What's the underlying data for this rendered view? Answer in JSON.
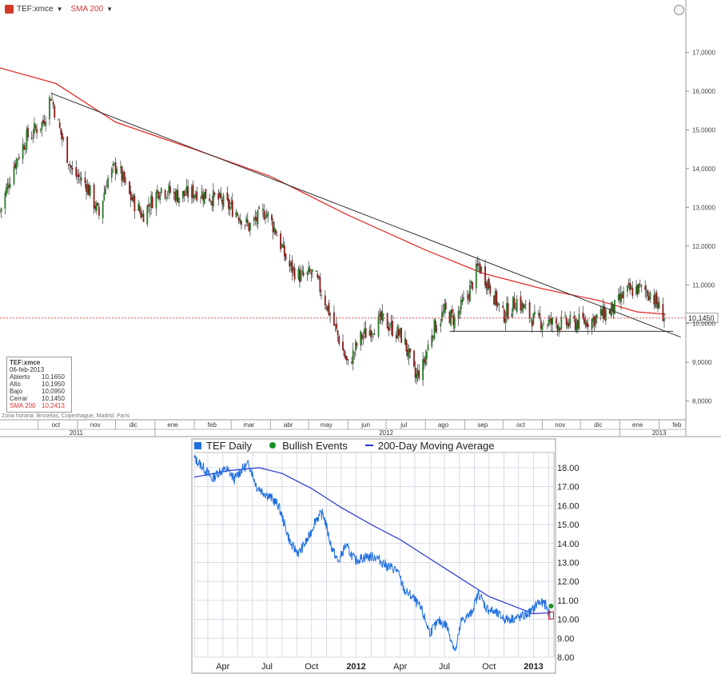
{
  "toolbar": {
    "symbol": "TEF:xmce",
    "indicator": "SMA 200"
  },
  "legend_box": {
    "title": "TEF:xmce",
    "date": "06-feb-2013",
    "rows": [
      {
        "k": "Abierto",
        "v": "10,1650"
      },
      {
        "k": "Alto",
        "v": "10,1950"
      },
      {
        "k": "Bajo",
        "v": "10,0950"
      },
      {
        "k": "Cerrar",
        "v": "10,1450"
      },
      {
        "k": "SMA 200",
        "v": "10,2413"
      }
    ]
  },
  "timezone_note": "Zona horaria: Bruselas, Copenhague, Madrid, París",
  "colors": {
    "candle_up": "#2a7a2a",
    "candle_down": "#8a1a1a",
    "sma": "#e03030",
    "trendline": "#333333",
    "daily": "#1f6fe0",
    "ma_bottom": "#2233cc",
    "bullish": "#1a8f2a"
  },
  "chart_data": [
    {
      "type": "candlestick",
      "title": "",
      "ylim": [
        7.6,
        17.9
      ],
      "y_ticks": [
        {
          "v": 8,
          "label": "8,0000"
        },
        {
          "v": 9,
          "label": "9,0000"
        },
        {
          "v": 10,
          "label": "10,0000"
        },
        {
          "v": 11,
          "label": "11,0000"
        },
        {
          "v": 12,
          "label": "12,0000"
        },
        {
          "v": 13,
          "label": "13,0000"
        },
        {
          "v": 14,
          "label": "14,0000"
        },
        {
          "v": 15,
          "label": "15,0000"
        },
        {
          "v": 16,
          "label": "16,0000"
        },
        {
          "v": 17,
          "label": "17,0000"
        }
      ],
      "x_range": [
        "2011-09-01",
        "2013-02-22"
      ],
      "month_labels": [
        {
          "d": "2011-10-15",
          "label": "oct"
        },
        {
          "d": "2011-11-15",
          "label": "nov"
        },
        {
          "d": "2011-12-15",
          "label": "dic"
        },
        {
          "d": "2012-01-15",
          "label": "ene"
        },
        {
          "d": "2012-02-15",
          "label": "feb"
        },
        {
          "d": "2012-03-15",
          "label": "mar"
        },
        {
          "d": "2012-04-15",
          "label": "abr"
        },
        {
          "d": "2012-05-15",
          "label": "may"
        },
        {
          "d": "2012-06-15",
          "label": "jun"
        },
        {
          "d": "2012-07-15",
          "label": "jul"
        },
        {
          "d": "2012-08-15",
          "label": "ago"
        },
        {
          "d": "2012-09-15",
          "label": "sep"
        },
        {
          "d": "2012-10-15",
          "label": "oct"
        },
        {
          "d": "2012-11-15",
          "label": "nov"
        },
        {
          "d": "2012-12-15",
          "label": "dic"
        },
        {
          "d": "2013-01-15",
          "label": "ene"
        },
        {
          "d": "2013-02-15",
          "label": "feb"
        }
      ],
      "year_labels": [
        {
          "d": "2011-10-31",
          "label": "2011"
        },
        {
          "d": "2012-07-01",
          "label": "2012"
        },
        {
          "d": "2013-02-01",
          "label": "2013"
        }
      ],
      "price_path": [
        {
          "d": "2011-09-01",
          "c": 12.9
        },
        {
          "d": "2011-09-12",
          "c": 14.1
        },
        {
          "d": "2011-09-22",
          "c": 14.8
        },
        {
          "d": "2011-10-05",
          "c": 15.2
        },
        {
          "d": "2011-10-11",
          "c": 15.9
        },
        {
          "d": "2011-10-18",
          "c": 15.0
        },
        {
          "d": "2011-10-28",
          "c": 13.9
        },
        {
          "d": "2011-11-08",
          "c": 13.6
        },
        {
          "d": "2011-11-18",
          "c": 12.8
        },
        {
          "d": "2011-11-24",
          "c": 13.7
        },
        {
          "d": "2011-12-02",
          "c": 14.1
        },
        {
          "d": "2011-12-12",
          "c": 13.3
        },
        {
          "d": "2011-12-22",
          "c": 12.8
        },
        {
          "d": "2012-01-05",
          "c": 13.5
        },
        {
          "d": "2012-01-20",
          "c": 13.3
        },
        {
          "d": "2012-02-03",
          "c": 13.4
        },
        {
          "d": "2012-02-20",
          "c": 13.2
        },
        {
          "d": "2012-03-05",
          "c": 12.9
        },
        {
          "d": "2012-03-15",
          "c": 12.5
        },
        {
          "d": "2012-03-28",
          "c": 12.9
        },
        {
          "d": "2012-04-05",
          "c": 12.4
        },
        {
          "d": "2012-04-15",
          "c": 11.5
        },
        {
          "d": "2012-04-25",
          "c": 11.2
        },
        {
          "d": "2012-05-05",
          "c": 11.3
        },
        {
          "d": "2012-05-15",
          "c": 10.5
        },
        {
          "d": "2012-05-25",
          "c": 9.6
        },
        {
          "d": "2012-06-01",
          "c": 8.9
        },
        {
          "d": "2012-06-10",
          "c": 9.6
        },
        {
          "d": "2012-06-20",
          "c": 9.9
        },
        {
          "d": "2012-06-28",
          "c": 10.1
        },
        {
          "d": "2012-07-05",
          "c": 9.9
        },
        {
          "d": "2012-07-15",
          "c": 9.6
        },
        {
          "d": "2012-07-24",
          "c": 8.6
        },
        {
          "d": "2012-07-30",
          "c": 8.9
        },
        {
          "d": "2012-08-06",
          "c": 9.8
        },
        {
          "d": "2012-08-16",
          "c": 10.3
        },
        {
          "d": "2012-08-24",
          "c": 10.1
        },
        {
          "d": "2012-09-04",
          "c": 10.8
        },
        {
          "d": "2012-09-12",
          "c": 11.5
        },
        {
          "d": "2012-09-20",
          "c": 11.0
        },
        {
          "d": "2012-10-01",
          "c": 10.2
        },
        {
          "d": "2012-10-12",
          "c": 10.6
        },
        {
          "d": "2012-10-25",
          "c": 10.1
        },
        {
          "d": "2012-11-10",
          "c": 10.0
        },
        {
          "d": "2012-11-25",
          "c": 10.0
        },
        {
          "d": "2012-12-10",
          "c": 10.1
        },
        {
          "d": "2012-12-28",
          "c": 10.4
        },
        {
          "d": "2013-01-05",
          "c": 10.8
        },
        {
          "d": "2013-01-15",
          "c": 10.9
        },
        {
          "d": "2013-01-25",
          "c": 10.8
        },
        {
          "d": "2013-02-01",
          "c": 10.4
        },
        {
          "d": "2013-02-06",
          "c": 10.145
        }
      ],
      "sma_200": [
        {
          "d": "2011-09-01",
          "v": 16.6
        },
        {
          "d": "2011-10-15",
          "v": 16.2
        },
        {
          "d": "2011-12-01",
          "v": 15.2
        },
        {
          "d": "2012-02-01",
          "v": 14.5
        },
        {
          "d": "2012-04-01",
          "v": 13.8
        },
        {
          "d": "2012-06-01",
          "v": 12.8
        },
        {
          "d": "2012-08-01",
          "v": 11.9
        },
        {
          "d": "2012-09-15",
          "v": 11.3
        },
        {
          "d": "2012-11-01",
          "v": 10.9
        },
        {
          "d": "2012-12-15",
          "v": 10.6
        },
        {
          "d": "2013-01-15",
          "v": 10.3
        },
        {
          "d": "2013-02-06",
          "v": 10.2413
        }
      ],
      "trendlines": [
        {
          "from": {
            "d": "2011-10-11",
            "v": 15.95
          },
          "to": {
            "d": "2013-02-18",
            "v": 9.65
          }
        },
        {
          "from": {
            "d": "2012-08-20",
            "v": 9.8
          },
          "to": {
            "d": "2013-02-12",
            "v": 9.8
          }
        }
      ],
      "last_price": {
        "v": 10.145,
        "label": "10,1450"
      }
    },
    {
      "type": "line",
      "title": "",
      "series": [
        {
          "name": "TEF Daily",
          "points": [
            {
              "d": "2011-02-01",
              "v": 18.5
            },
            {
              "d": "2011-02-20",
              "v": 18.0
            },
            {
              "d": "2011-03-10",
              "v": 17.4
            },
            {
              "d": "2011-03-25",
              "v": 17.8
            },
            {
              "d": "2011-04-10",
              "v": 17.9
            },
            {
              "d": "2011-04-25",
              "v": 17.4
            },
            {
              "d": "2011-05-10",
              "v": 17.9
            },
            {
              "d": "2011-05-25",
              "v": 18.2
            },
            {
              "d": "2011-06-10",
              "v": 17.0
            },
            {
              "d": "2011-06-25",
              "v": 16.7
            },
            {
              "d": "2011-07-10",
              "v": 16.4
            },
            {
              "d": "2011-07-25",
              "v": 16.0
            },
            {
              "d": "2011-08-05",
              "v": 15.1
            },
            {
              "d": "2011-08-20",
              "v": 13.9
            },
            {
              "d": "2011-09-05",
              "v": 13.5
            },
            {
              "d": "2011-09-25",
              "v": 14.3
            },
            {
              "d": "2011-10-10",
              "v": 15.3
            },
            {
              "d": "2011-10-25",
              "v": 15.6
            },
            {
              "d": "2011-11-10",
              "v": 13.9
            },
            {
              "d": "2011-11-25",
              "v": 13.0
            },
            {
              "d": "2011-12-10",
              "v": 13.9
            },
            {
              "d": "2011-12-30",
              "v": 13.1
            },
            {
              "d": "2012-01-20",
              "v": 13.3
            },
            {
              "d": "2012-02-10",
              "v": 13.3
            },
            {
              "d": "2012-03-05",
              "v": 12.8
            },
            {
              "d": "2012-03-25",
              "v": 12.6
            },
            {
              "d": "2012-04-10",
              "v": 11.5
            },
            {
              "d": "2012-04-25",
              "v": 11.2
            },
            {
              "d": "2012-05-15",
              "v": 10.5
            },
            {
              "d": "2012-06-01",
              "v": 9.3
            },
            {
              "d": "2012-06-20",
              "v": 9.9
            },
            {
              "d": "2012-07-05",
              "v": 9.7
            },
            {
              "d": "2012-07-24",
              "v": 8.3
            },
            {
              "d": "2012-08-05",
              "v": 9.9
            },
            {
              "d": "2012-08-25",
              "v": 10.3
            },
            {
              "d": "2012-09-10",
              "v": 11.4
            },
            {
              "d": "2012-09-25",
              "v": 10.6
            },
            {
              "d": "2012-10-10",
              "v": 10.4
            },
            {
              "d": "2012-11-05",
              "v": 10.0
            },
            {
              "d": "2012-12-05",
              "v": 10.1
            },
            {
              "d": "2012-12-28",
              "v": 10.4
            },
            {
              "d": "2013-01-10",
              "v": 10.9
            },
            {
              "d": "2013-01-25",
              "v": 10.8
            },
            {
              "d": "2013-02-06",
              "v": 10.1
            }
          ]
        },
        {
          "name": "200-Day Moving Average",
          "points": [
            {
              "d": "2011-02-01",
              "v": 17.5
            },
            {
              "d": "2011-04-15",
              "v": 17.85
            },
            {
              "d": "2011-06-15",
              "v": 18.0
            },
            {
              "d": "2011-08-01",
              "v": 17.7
            },
            {
              "d": "2011-10-01",
              "v": 16.9
            },
            {
              "d": "2011-12-01",
              "v": 15.9
            },
            {
              "d": "2012-02-01",
              "v": 15.0
            },
            {
              "d": "2012-04-01",
              "v": 14.2
            },
            {
              "d": "2012-06-01",
              "v": 13.2
            },
            {
              "d": "2012-08-01",
              "v": 12.2
            },
            {
              "d": "2012-10-01",
              "v": 11.2
            },
            {
              "d": "2012-12-01",
              "v": 10.6
            },
            {
              "d": "2013-01-01",
              "v": 10.3
            },
            {
              "d": "2013-02-06",
              "v": 10.35
            }
          ]
        }
      ],
      "legend": [
        "TEF Daily",
        "Bullish Events",
        "200-Day Moving Average"
      ],
      "bullish_events": [
        {
          "d": "2013-02-06",
          "v": 10.7
        }
      ],
      "ylim": [
        8.0,
        18.8
      ],
      "y_ticks": [
        8,
        9,
        10,
        11,
        12,
        13,
        14,
        15,
        16,
        17,
        18
      ],
      "y_tick_labels": [
        "8.00",
        "9.00",
        "10.00",
        "11.00",
        "12.00",
        "13.00",
        "14.00",
        "15.00",
        "16.00",
        "17.00",
        "18.00"
      ],
      "x_range": [
        "2011-02-01",
        "2013-02-12"
      ],
      "x_ticks": [
        {
          "d": "2011-04-01",
          "label": "Apr"
        },
        {
          "d": "2011-07-01",
          "label": "Jul"
        },
        {
          "d": "2011-10-01",
          "label": "Oct"
        },
        {
          "d": "2012-01-01",
          "label": "2012"
        },
        {
          "d": "2012-04-01",
          "label": "Apr"
        },
        {
          "d": "2012-07-01",
          "label": "Jul"
        },
        {
          "d": "2012-10-01",
          "label": "Oct"
        },
        {
          "d": "2013-01-01",
          "label": "2013"
        }
      ]
    }
  ]
}
